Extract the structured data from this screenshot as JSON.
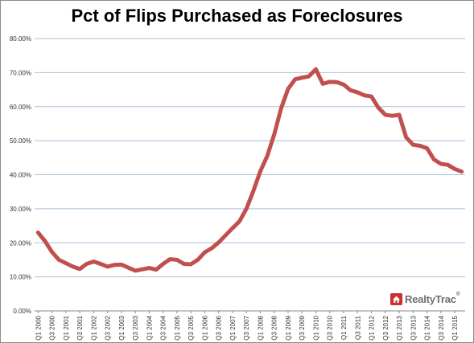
{
  "chart_data": {
    "type": "line",
    "title": "Pct of Flips Purchased as Foreclosures",
    "xlabel": "",
    "ylabel": "",
    "ylim": [
      0,
      80
    ],
    "yticks": [
      "0.00%",
      "10.00%",
      "20.00%",
      "30.00%",
      "40.00%",
      "50.00%",
      "60.00%",
      "70.00%",
      "80.00%"
    ],
    "grid": true,
    "legend": "none",
    "x": [
      "Q1 2000",
      "Q2 2000",
      "Q3 2000",
      "Q4 2000",
      "Q1 2001",
      "Q2 2001",
      "Q3 2001",
      "Q4 2001",
      "Q1 2002",
      "Q2 2002",
      "Q3 2002",
      "Q4 2002",
      "Q1 2003",
      "Q2 2003",
      "Q3 2003",
      "Q4 2003",
      "Q1 2004",
      "Q2 2004",
      "Q3 2004",
      "Q4 2004",
      "Q1 2005",
      "Q2 2005",
      "Q3 2005",
      "Q4 2005",
      "Q1 2006",
      "Q2 2006",
      "Q3 2006",
      "Q4 2006",
      "Q1 2007",
      "Q2 2007",
      "Q3 2007",
      "Q4 2007",
      "Q1 2008",
      "Q2 2008",
      "Q3 2008",
      "Q4 2008",
      "Q1 2009",
      "Q2 2009",
      "Q3 2009",
      "Q4 2009",
      "Q1 2010",
      "Q2 2010",
      "Q3 2010",
      "Q4 2010",
      "Q1 2011",
      "Q2 2011",
      "Q3 2011",
      "Q4 2011",
      "Q1 2012",
      "Q2 2012",
      "Q3 2012",
      "Q4 2012",
      "Q1 2013",
      "Q2 2013",
      "Q3 2013",
      "Q4 2013",
      "Q1 2014",
      "Q2 2014",
      "Q3 2014",
      "Q4 2014",
      "Q1 2015",
      "Q2 2015"
    ],
    "xtick_labels": [
      "Q1 2000",
      "Q3 2000",
      "Q1 2001",
      "Q3 2001",
      "Q1 2002",
      "Q3 2002",
      "Q1 2003",
      "Q3 2003",
      "Q1 2004",
      "Q3 2004",
      "Q1 2005",
      "Q3 2005",
      "Q1 2006",
      "Q3 2006",
      "Q1 2007",
      "Q3 2007",
      "Q1 2008",
      "Q3 2008",
      "Q1 2009",
      "Q3 2009",
      "Q1 2010",
      "Q3 2010",
      "Q1 2011",
      "Q3 2011",
      "Q1 2012",
      "Q3 2012",
      "Q1 2013",
      "Q3 2013",
      "Q1 2014",
      "Q3 2014",
      "Q1 2015"
    ],
    "series": [
      {
        "color": "#c0504d",
        "values": [
          23.0,
          20.5,
          17.3,
          15.0,
          14.0,
          13.0,
          12.3,
          13.8,
          14.5,
          13.8,
          13.0,
          13.5,
          13.6,
          12.7,
          11.8,
          12.2,
          12.6,
          12.1,
          13.8,
          15.2,
          15.0,
          13.8,
          13.7,
          15.0,
          17.2,
          18.4,
          20.1,
          22.2,
          24.3,
          26.3,
          30.0,
          35.2,
          41.0,
          45.5,
          51.8,
          59.5,
          65.2,
          68.0,
          68.5,
          68.9,
          71.0,
          66.7,
          67.3,
          67.2,
          66.5,
          64.8,
          64.2,
          63.3,
          63.0,
          59.7,
          57.6,
          57.3,
          57.6,
          51.0,
          48.8,
          48.5,
          47.8,
          44.5,
          43.2,
          42.9,
          41.7,
          40.9
        ]
      }
    ]
  },
  "brand": {
    "name": "RealtyTrac",
    "trademark": "®",
    "logo_color": "#c8312e",
    "text_color": "#6d6e71"
  }
}
